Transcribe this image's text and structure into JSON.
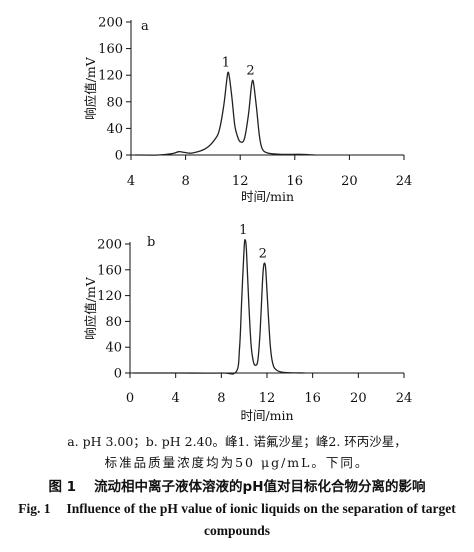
{
  "chart_data": [
    {
      "type": "line",
      "panel_label": "a",
      "xlabel": "时间/min",
      "ylabel": "响应值/mV",
      "xlim": [
        4,
        24
      ],
      "ylim": [
        0,
        200
      ],
      "xticks": [
        "4",
        "8",
        "12",
        "16",
        "20",
        "24"
      ],
      "yticks": [
        "0",
        "40",
        "80",
        "120",
        "160",
        "200"
      ],
      "peaks": [
        {
          "label": "1",
          "x": 11.1,
          "y": 124
        },
        {
          "label": "2",
          "x": 12.9,
          "y": 112
        }
      ],
      "series": [
        {
          "x": [
            4.3,
            6.0,
            7.0,
            7.5,
            7.9,
            8.5,
            9.5,
            10.2,
            10.5,
            10.8,
            11.0,
            11.1,
            11.2,
            11.4,
            11.6,
            11.8,
            12.0,
            12.3,
            12.6,
            12.8,
            12.9,
            13.0,
            13.2,
            13.4,
            13.6,
            14.0,
            15.0,
            16.5,
            17.5
          ],
          "y": [
            0,
            0,
            2,
            5,
            4,
            3,
            10,
            25,
            40,
            75,
            110,
            124,
            118,
            85,
            45,
            28,
            20,
            24,
            60,
            100,
            112,
            105,
            70,
            30,
            10,
            3,
            1,
            1,
            0
          ]
        }
      ]
    },
    {
      "type": "line",
      "panel_label": "b",
      "xlabel": "时间/min",
      "ylabel": "响应值/mV",
      "xlim": [
        0,
        24
      ],
      "ylim": [
        0,
        200
      ],
      "xticks": [
        "0",
        "4",
        "8",
        "12",
        "16",
        "20",
        "24"
      ],
      "yticks": [
        "0",
        "40",
        "80",
        "120",
        "160",
        "200"
      ],
      "peaks": [
        {
          "label": "1",
          "x": 10.1,
          "y": 206
        },
        {
          "label": "2",
          "x": 11.8,
          "y": 170
        }
      ],
      "series": [
        {
          "x": [
            0.3,
            4.0,
            8.0,
            9.3,
            9.6,
            9.8,
            10.0,
            10.1,
            10.2,
            10.4,
            10.6,
            10.8,
            11.0,
            11.2,
            11.4,
            11.6,
            11.7,
            11.8,
            11.9,
            12.1,
            12.3,
            12.5,
            12.8,
            13.5,
            15.3
          ],
          "y": [
            0,
            0,
            0,
            2,
            40,
            120,
            195,
            206,
            190,
            110,
            45,
            18,
            12,
            20,
            65,
            140,
            165,
            170,
            158,
            95,
            40,
            15,
            5,
            1,
            0
          ]
        }
      ]
    }
  ],
  "caption": {
    "note_line1": "a. pH 3.00；b. pH 2.40。峰1. 诺氟沙星；峰2. 环丙沙星，",
    "note_line2": "标准品质量浓度均为50 μg/mL。下同。",
    "label_cn": "图 1",
    "title_cn": "流动相中离子液体溶液的pH值对目标化合物分离的影响",
    "label_en": "Fig. 1",
    "title_en": "Influence of the pH value of ionic liquids on the separation of target compounds"
  }
}
